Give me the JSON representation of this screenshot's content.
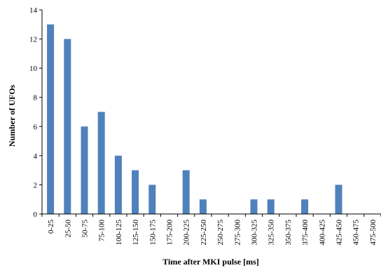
{
  "chart_data": {
    "type": "bar",
    "xlabel": "Time after MKI pulse [ms]",
    "ylabel": "Number of UFOs",
    "ylim": [
      0,
      14
    ],
    "yticks": [
      0,
      2,
      4,
      6,
      8,
      10,
      12,
      14
    ],
    "grid": false,
    "bar_color": "#4f81bd",
    "categories": [
      "0-25",
      "25-50",
      "50-75",
      "75-100",
      "100-125",
      "125-150",
      "150-175",
      "175-200",
      "200-225",
      "225-250",
      "250-275",
      "275-300",
      "300-325",
      "325-350",
      "350-375",
      "375-400",
      "400-425",
      "425-450",
      "450-475",
      "475-500"
    ],
    "values": [
      13,
      12,
      6,
      7,
      4,
      3,
      2,
      0,
      3,
      1,
      0,
      0,
      1,
      1,
      0,
      1,
      0,
      2,
      0,
      0
    ]
  }
}
